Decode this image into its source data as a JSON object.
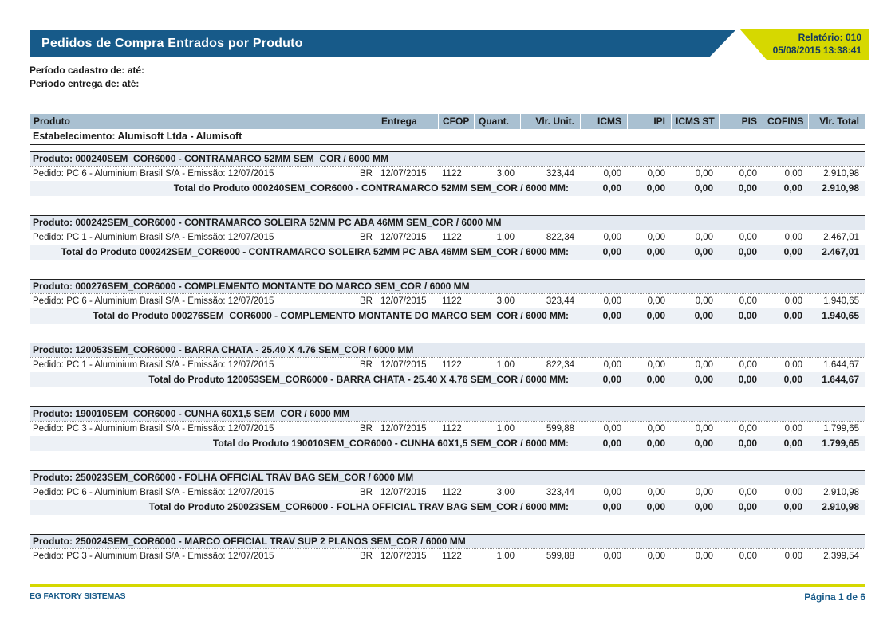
{
  "header": {
    "title": "Pedidos de Compra Entrados por Produto",
    "report_label": "Relatório: 010",
    "report_datetime": "05/08/2015 13:38:41"
  },
  "filters": {
    "period_cadastro": "Período cadastro de:  até:",
    "period_entrega": "Período entrega de:  até:"
  },
  "table": {
    "columns": [
      "Produto",
      "Entrega",
      "CFOP",
      "Quant.",
      "Vlr. Unit.",
      "ICMS",
      "IPI",
      "ICMS ST",
      "PIS",
      "COFINS",
      "Vlr. Total"
    ],
    "establishment": "Estabelecimento: Alumisoft Ltda - Alumisoft",
    "groups": [
      {
        "product": "Produto: 000240SEM_COR6000 - CONTRAMARCO 52MM SEM_COR / 6000 MM",
        "order": {
          "label": "Pedido: PC 6 - Aluminium Brasil S/A - Emissão: 12/07/2015",
          "flag": "BR",
          "entrega": "12/07/2015",
          "cfop": "1122",
          "quant": "3,00",
          "vlr_unit": "323,44",
          "icms": "0,00",
          "ipi": "0,00",
          "icms_st": "0,00",
          "pis": "0,00",
          "cofins": "0,00",
          "vlr_total": "2.910,98"
        },
        "total": {
          "label": "Total do Produto 000240SEM_COR6000 - CONTRAMARCO 52MM SEM_COR / 6000 MM:",
          "icms": "0,00",
          "ipi": "0,00",
          "icms_st": "0,00",
          "pis": "0,00",
          "cofins": "0,00",
          "vlr_total": "2.910,98"
        }
      },
      {
        "product": "Produto: 000242SEM_COR6000 - CONTRAMARCO SOLEIRA 52MM PC ABA 46MM SEM_COR / 6000 MM",
        "order": {
          "label": "Pedido: PC 1 - Aluminium Brasil S/A - Emissão: 12/07/2015",
          "flag": "BR",
          "entrega": "12/07/2015",
          "cfop": "1122",
          "quant": "1,00",
          "vlr_unit": "822,34",
          "icms": "0,00",
          "ipi": "0,00",
          "icms_st": "0,00",
          "pis": "0,00",
          "cofins": "0,00",
          "vlr_total": "2.467,01"
        },
        "total": {
          "label": "Total do Produto 000242SEM_COR6000 - CONTRAMARCO SOLEIRA 52MM PC ABA 46MM SEM_COR / 6000 MM:",
          "icms": "0,00",
          "ipi": "0,00",
          "icms_st": "0,00",
          "pis": "0,00",
          "cofins": "0,00",
          "vlr_total": "2.467,01"
        }
      },
      {
        "product": "Produto: 000276SEM_COR6000 - COMPLEMENTO MONTANTE DO MARCO SEM_COR / 6000 MM",
        "order": {
          "label": "Pedido: PC 6 - Aluminium Brasil S/A - Emissão: 12/07/2015",
          "flag": "BR",
          "entrega": "12/07/2015",
          "cfop": "1122",
          "quant": "3,00",
          "vlr_unit": "323,44",
          "icms": "0,00",
          "ipi": "0,00",
          "icms_st": "0,00",
          "pis": "0,00",
          "cofins": "0,00",
          "vlr_total": "1.940,65"
        },
        "total": {
          "label": "Total do Produto 000276SEM_COR6000 - COMPLEMENTO MONTANTE DO MARCO SEM_COR / 6000 MM:",
          "icms": "0,00",
          "ipi": "0,00",
          "icms_st": "0,00",
          "pis": "0,00",
          "cofins": "0,00",
          "vlr_total": "1.940,65"
        }
      },
      {
        "product": "Produto: 120053SEM_COR6000 - BARRA CHATA - 25.40 X 4.76 SEM_COR / 6000 MM",
        "order": {
          "label": "Pedido: PC 1 - Aluminium Brasil S/A - Emissão: 12/07/2015",
          "flag": "BR",
          "entrega": "12/07/2015",
          "cfop": "1122",
          "quant": "1,00",
          "vlr_unit": "822,34",
          "icms": "0,00",
          "ipi": "0,00",
          "icms_st": "0,00",
          "pis": "0,00",
          "cofins": "0,00",
          "vlr_total": "1.644,67"
        },
        "total": {
          "label": "Total do Produto 120053SEM_COR6000 - BARRA CHATA - 25.40 X 4.76 SEM_COR / 6000 MM:",
          "icms": "0,00",
          "ipi": "0,00",
          "icms_st": "0,00",
          "pis": "0,00",
          "cofins": "0,00",
          "vlr_total": "1.644,67"
        }
      },
      {
        "product": "Produto: 190010SEM_COR6000 - CUNHA 60X1,5 SEM_COR / 6000 MM",
        "order": {
          "label": "Pedido: PC 3 - Aluminium Brasil S/A - Emissão: 12/07/2015",
          "flag": "BR",
          "entrega": "12/07/2015",
          "cfop": "1122",
          "quant": "1,00",
          "vlr_unit": "599,88",
          "icms": "0,00",
          "ipi": "0,00",
          "icms_st": "0,00",
          "pis": "0,00",
          "cofins": "0,00",
          "vlr_total": "1.799,65"
        },
        "total": {
          "label": "Total do Produto 190010SEM_COR6000 - CUNHA 60X1,5 SEM_COR / 6000 MM:",
          "icms": "0,00",
          "ipi": "0,00",
          "icms_st": "0,00",
          "pis": "0,00",
          "cofins": "0,00",
          "vlr_total": "1.799,65"
        }
      },
      {
        "product": "Produto: 250023SEM_COR6000 - FOLHA OFFICIAL TRAV BAG SEM_COR / 6000 MM",
        "order": {
          "label": "Pedido: PC 6 - Aluminium Brasil S/A - Emissão: 12/07/2015",
          "flag": "BR",
          "entrega": "12/07/2015",
          "cfop": "1122",
          "quant": "3,00",
          "vlr_unit": "323,44",
          "icms": "0,00",
          "ipi": "0,00",
          "icms_st": "0,00",
          "pis": "0,00",
          "cofins": "0,00",
          "vlr_total": "2.910,98"
        },
        "total": {
          "label": "Total do Produto 250023SEM_COR6000 - FOLHA OFFICIAL TRAV BAG SEM_COR / 6000 MM:",
          "icms": "0,00",
          "ipi": "0,00",
          "icms_st": "0,00",
          "pis": "0,00",
          "cofins": "0,00",
          "vlr_total": "2.910,98"
        }
      },
      {
        "product": "Produto: 250024SEM_COR6000 - MARCO OFFICIAL TRAV SUP 2 PLANOS SEM_COR / 6000 MM",
        "order": {
          "label": "Pedido: PC 3 - Aluminium Brasil S/A - Emissão: 12/07/2015",
          "flag": "BR",
          "entrega": "12/07/2015",
          "cfop": "1122",
          "quant": "1,00",
          "vlr_unit": "599,88",
          "icms": "0,00",
          "ipi": "0,00",
          "icms_st": "0,00",
          "pis": "0,00",
          "cofins": "0,00",
          "vlr_total": "2.399,54"
        },
        "total": null
      }
    ]
  },
  "footer": {
    "brand": "EG FAKTORY SISTEMAS",
    "page_indicator": "Página 1 de 6"
  },
  "colors": {
    "header_blue": "#175A89",
    "accent_yellow": "#D6D800",
    "table_header_bg": "#A9C0D1",
    "group_header_bg": "#E3E9F1",
    "total_row_bg": "#EDF1F6"
  }
}
